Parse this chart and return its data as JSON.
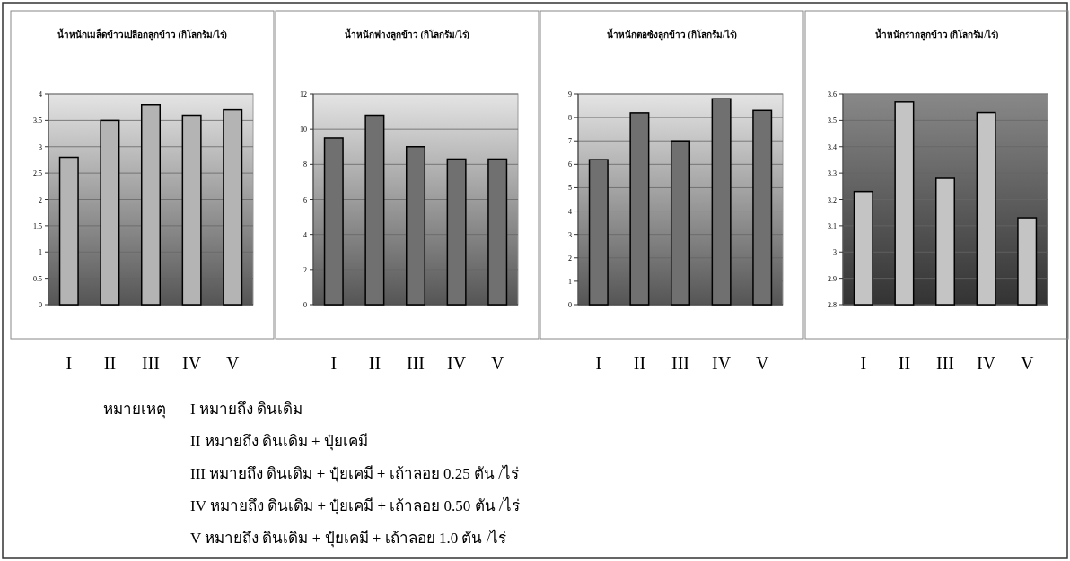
{
  "chart_data": [
    {
      "type": "bar",
      "title": "น้ำหนักเมล็ดข้าวเปลือกลูกข้าว (กิโลกรัม/ไร่)",
      "categories": [
        "I",
        "II",
        "III",
        "IV",
        "V"
      ],
      "values": [
        2.8,
        3.5,
        3.8,
        3.6,
        3.7
      ],
      "color": "#b4b4b4",
      "ylim": [
        0,
        4
      ],
      "yticks": [
        0,
        0.5,
        1,
        1.5,
        2,
        2.5,
        3,
        3.5,
        4
      ],
      "grid": "y"
    },
    {
      "type": "bar",
      "title": "น้ำหนักฟางลูกข้าว (กิโลกรัม/ไร่)",
      "categories": [
        "I",
        "II",
        "III",
        "IV",
        "V"
      ],
      "values": [
        9.5,
        10.8,
        9.0,
        8.3,
        8.3
      ],
      "color": "#707070",
      "ylim": [
        0,
        12
      ],
      "yticks": [
        0,
        2,
        4,
        6,
        8,
        10,
        12
      ],
      "grid": "y"
    },
    {
      "type": "bar",
      "title": "น้ำหนักตอซังลูกข้าว (กิโลกรัม/ไร่)",
      "categories": [
        "I",
        "II",
        "III",
        "IV",
        "V"
      ],
      "values": [
        6.2,
        8.2,
        7.0,
        8.8,
        8.3
      ],
      "color": "#707070",
      "ylim": [
        0,
        9
      ],
      "yticks": [
        0,
        1,
        2,
        3,
        4,
        5,
        6,
        7,
        8,
        9
      ],
      "grid": "y"
    },
    {
      "type": "bar",
      "title": "น้ำหนักรากลูกข้าว (กิโลกรัม/ไร่)",
      "categories": [
        "I",
        "II",
        "III",
        "IV",
        "V"
      ],
      "values": [
        3.23,
        3.57,
        3.28,
        3.53,
        3.13
      ],
      "color": "#c4c4c4",
      "ylim": [
        2.8,
        3.6
      ],
      "yticks": [
        2.8,
        2.9,
        3,
        3.1,
        3.2,
        3.3,
        3.4,
        3.5,
        3.6
      ],
      "grid": "y"
    },
    {
      "type": "other",
      "annotations": [
        "หมายเหตุ",
        "I หมายถึง ดินเดิม",
        "II หมายถึง ดินเดิม + ปุ๋ยเคมี",
        "III หมายถึง ดินเดิม + ปุ๋ยเคมี + เถ้าลอย 0.25 ตัน /ไร่",
        "IV หมายถึง ดินเดิม + ปุ๋ยเคมี + เถ้าลอย 0.50 ตัน /ไร่",
        "V หมายถึง ดินเดิม + ปุ๋ยเคมี + เถ้าลอย 1.0 ตัน /ไร่"
      ]
    }
  ]
}
